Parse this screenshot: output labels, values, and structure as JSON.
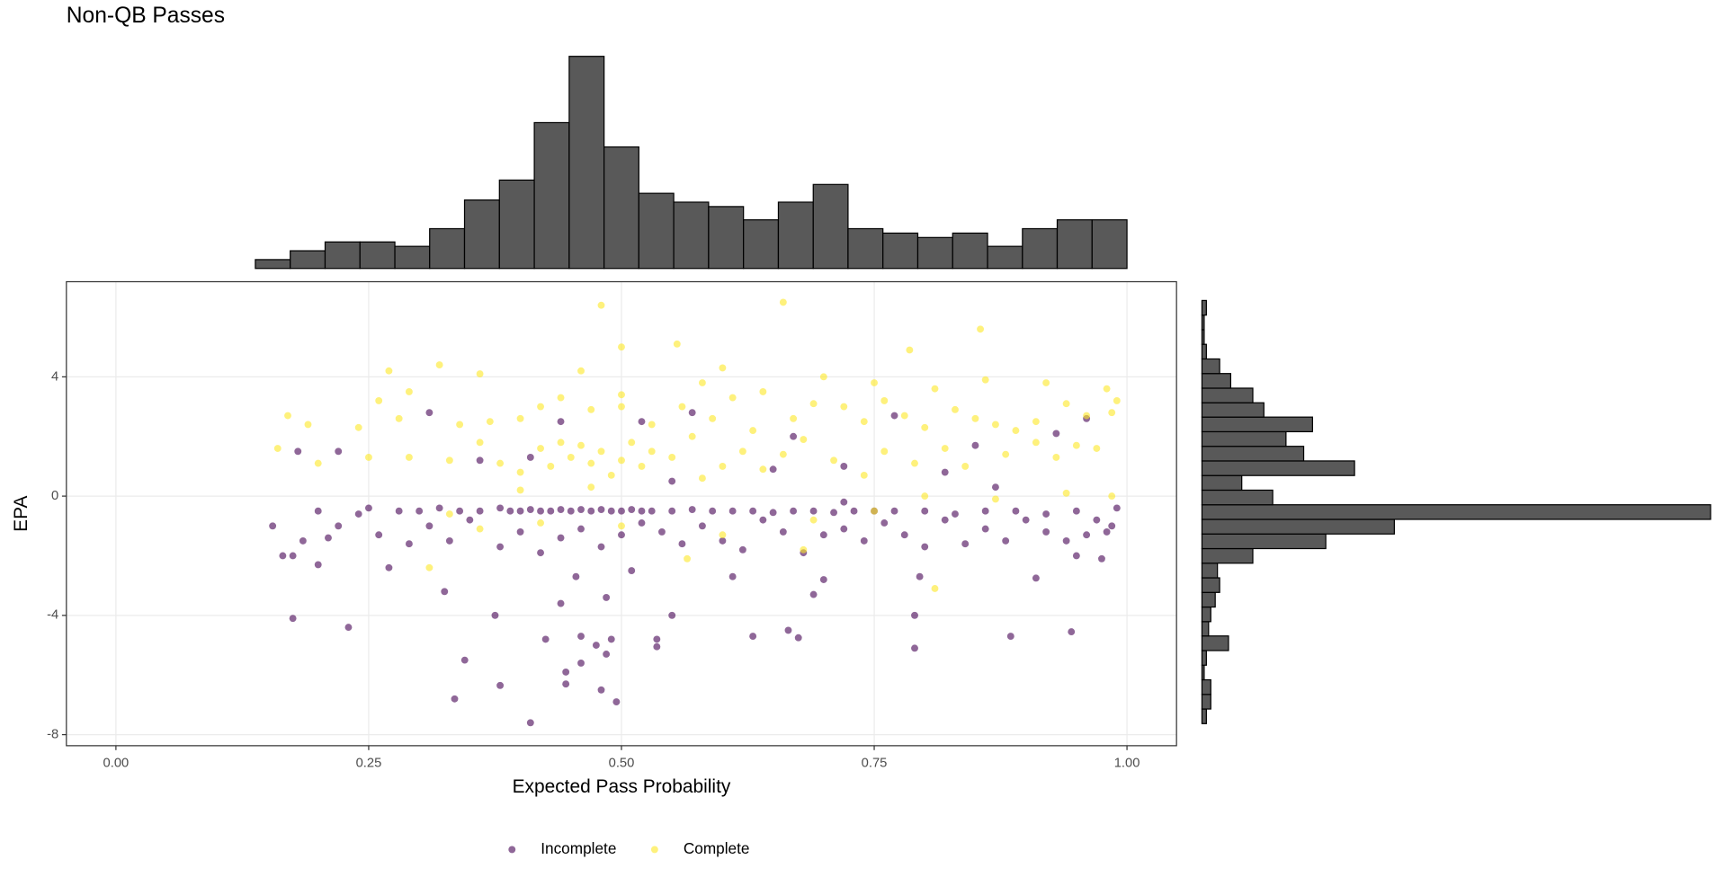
{
  "chart_data": {
    "type": "scatter",
    "title": "Non-QB Passes",
    "xlabel": "Expected Pass Probability",
    "ylabel": "EPA",
    "xlim": [
      -0.049,
      1.049
    ],
    "ylim": [
      -8.37,
      7.19
    ],
    "xticks": [
      {
        "value": 0,
        "label": "0.00"
      },
      {
        "value": 0.25,
        "label": "0.25"
      },
      {
        "value": 0.5,
        "label": "0.50"
      },
      {
        "value": 0.75,
        "label": "0.75"
      },
      {
        "value": 1,
        "label": "1.00"
      }
    ],
    "yticks": [
      -8,
      -4,
      0,
      4
    ],
    "grid": true,
    "alpha": 0.6,
    "legend": "bottom",
    "series": [
      {
        "name": "Incomplete",
        "color": "#440154",
        "x": [
          0.41,
          0.335,
          0.38,
          0.48,
          0.495,
          0.445,
          0.445,
          0.345,
          0.46,
          0.485,
          0.475,
          0.425,
          0.46,
          0.49,
          0.535,
          0.535,
          0.63,
          0.665,
          0.675,
          0.79,
          0.885,
          0.945,
          0.175,
          0.23,
          0.375,
          0.55,
          0.79,
          0.44,
          0.485,
          0.325,
          0.69,
          0.7,
          0.61,
          0.455,
          0.51,
          0.795,
          0.91,
          0.27,
          0.2,
          0.165,
          0.175,
          0.155,
          0.185,
          0.21,
          0.2,
          0.22,
          0.24,
          0.26,
          0.29,
          0.31,
          0.33,
          0.35,
          0.38,
          0.4,
          0.42,
          0.44,
          0.46,
          0.48,
          0.5,
          0.52,
          0.54,
          0.56,
          0.58,
          0.6,
          0.62,
          0.64,
          0.66,
          0.68,
          0.7,
          0.72,
          0.74,
          0.76,
          0.78,
          0.8,
          0.82,
          0.84,
          0.86,
          0.88,
          0.9,
          0.92,
          0.94,
          0.95,
          0.96,
          0.97,
          0.98,
          0.99,
          0.975,
          0.985,
          0.25,
          0.28,
          0.3,
          0.32,
          0.34,
          0.36,
          0.38,
          0.39,
          0.4,
          0.41,
          0.42,
          0.43,
          0.44,
          0.45,
          0.46,
          0.47,
          0.48,
          0.49,
          0.5,
          0.51,
          0.52,
          0.53,
          0.55,
          0.57,
          0.59,
          0.61,
          0.63,
          0.65,
          0.67,
          0.69,
          0.71,
          0.73,
          0.75,
          0.77,
          0.8,
          0.83,
          0.86,
          0.89,
          0.92,
          0.95,
          0.31,
          0.18,
          0.22,
          0.36,
          0.41,
          0.44,
          0.52,
          0.57,
          0.65,
          0.67,
          0.72,
          0.72,
          0.77,
          0.82,
          0.85,
          0.87,
          0.93,
          0.96,
          0.55
        ],
        "values": [
          -7.6,
          -6.8,
          -6.35,
          -6.5,
          -6.9,
          -6.3,
          -5.9,
          -5.5,
          -5.6,
          -5.3,
          -5.0,
          -4.8,
          -4.7,
          -4.8,
          -4.8,
          -5.05,
          -4.7,
          -4.5,
          -4.75,
          -5.1,
          -4.7,
          -4.55,
          -4.1,
          -4.4,
          -4.0,
          -4.0,
          -4.0,
          -3.6,
          -3.4,
          -3.2,
          -3.3,
          -2.8,
          -2.7,
          -2.7,
          -2.5,
          -2.7,
          -2.75,
          -2.4,
          -2.3,
          -2.0,
          -2.0,
          -1.0,
          -1.5,
          -1.4,
          -0.5,
          -1.0,
          -0.6,
          -1.3,
          -1.6,
          -1.0,
          -1.5,
          -0.8,
          -1.7,
          -1.2,
          -1.9,
          -1.4,
          -1.1,
          -1.7,
          -1.3,
          -0.9,
          -1.2,
          -1.6,
          -1.0,
          -1.5,
          -1.8,
          -0.8,
          -1.2,
          -1.9,
          -1.3,
          -1.1,
          -1.5,
          -0.9,
          -1.3,
          -1.7,
          -0.8,
          -1.6,
          -1.1,
          -1.5,
          -0.8,
          -1.2,
          -1.5,
          -2.0,
          -1.3,
          -0.8,
          -1.2,
          -0.4,
          -2.1,
          -1.0,
          -0.4,
          -0.5,
          -0.5,
          -0.4,
          -0.5,
          -0.5,
          -0.4,
          -0.5,
          -0.5,
          -0.45,
          -0.5,
          -0.5,
          -0.45,
          -0.5,
          -0.45,
          -0.5,
          -0.45,
          -0.5,
          -0.5,
          -0.45,
          -0.5,
          -0.5,
          -0.5,
          -0.45,
          -0.5,
          -0.5,
          -0.5,
          -0.55,
          -0.5,
          -0.5,
          -0.55,
          -0.5,
          -0.5,
          -0.5,
          -0.5,
          -0.6,
          -0.5,
          -0.5,
          -0.6,
          -0.5,
          2.8,
          1.5,
          1.5,
          1.2,
          1.3,
          2.5,
          2.5,
          2.8,
          0.9,
          2.0,
          1.0,
          -0.2,
          2.7,
          0.8,
          1.7,
          0.3,
          2.1,
          2.6,
          0.5
        ]
      },
      {
        "name": "Complete",
        "color": "#FDE725",
        "x": [
          0.48,
          0.66,
          0.855,
          0.5,
          0.555,
          0.785,
          0.32,
          0.36,
          0.27,
          0.5,
          0.46,
          0.6,
          0.64,
          0.58,
          0.7,
          0.75,
          0.81,
          0.86,
          0.92,
          0.98,
          0.99,
          0.17,
          0.19,
          0.24,
          0.26,
          0.29,
          0.28,
          0.34,
          0.37,
          0.4,
          0.42,
          0.44,
          0.47,
          0.5,
          0.53,
          0.56,
          0.59,
          0.61,
          0.63,
          0.67,
          0.69,
          0.72,
          0.74,
          0.76,
          0.78,
          0.8,
          0.83,
          0.85,
          0.87,
          0.89,
          0.91,
          0.94,
          0.96,
          0.985,
          0.16,
          0.2,
          0.25,
          0.29,
          0.33,
          0.36,
          0.38,
          0.4,
          0.42,
          0.43,
          0.44,
          0.45,
          0.46,
          0.47,
          0.48,
          0.49,
          0.5,
          0.51,
          0.52,
          0.53,
          0.55,
          0.57,
          0.6,
          0.62,
          0.64,
          0.66,
          0.68,
          0.71,
          0.74,
          0.76,
          0.79,
          0.82,
          0.84,
          0.88,
          0.91,
          0.93,
          0.95,
          0.97,
          0.94,
          0.985,
          0.4,
          0.47,
          0.58,
          0.8,
          0.87,
          0.33,
          0.36,
          0.42,
          0.5,
          0.6,
          0.69,
          0.31,
          0.565,
          0.68,
          0.81,
          0.75
        ],
        "values": [
          6.4,
          6.5,
          5.6,
          5.0,
          5.1,
          4.9,
          4.4,
          4.1,
          4.2,
          3.4,
          4.2,
          4.3,
          3.5,
          3.8,
          4.0,
          3.8,
          3.6,
          3.9,
          3.8,
          3.6,
          3.2,
          2.7,
          2.4,
          2.3,
          3.2,
          3.5,
          2.6,
          2.4,
          2.5,
          2.6,
          3.0,
          3.3,
          2.9,
          3.0,
          2.4,
          3.0,
          2.6,
          3.3,
          2.2,
          2.6,
          3.1,
          3.0,
          2.5,
          3.2,
          2.7,
          2.3,
          2.9,
          2.6,
          2.4,
          2.2,
          2.5,
          3.1,
          2.7,
          2.8,
          1.6,
          1.1,
          1.3,
          1.3,
          1.2,
          1.8,
          1.1,
          0.8,
          1.6,
          1.0,
          1.8,
          1.3,
          1.7,
          1.1,
          1.5,
          0.7,
          1.2,
          1.8,
          1.0,
          1.5,
          1.3,
          2.0,
          1.0,
          1.5,
          0.9,
          1.4,
          1.9,
          1.2,
          0.7,
          1.5,
          1.1,
          1.6,
          1.0,
          1.4,
          1.8,
          1.3,
          1.7,
          1.6,
          0.1,
          0.0,
          0.2,
          0.3,
          0.6,
          0.0,
          -0.1,
          -0.6,
          -1.1,
          -0.9,
          -1.0,
          -1.3,
          -0.8,
          -2.4,
          -2.1,
          -1.8,
          -3.1,
          -0.5
        ]
      }
    ],
    "top_histogram": {
      "color": "#595959",
      "bins": [
        0,
        0.0345,
        0.069,
        0.1034,
        0.1379,
        0.1724,
        0.2069,
        0.2414,
        0.2759,
        0.3103,
        0.3448,
        0.3793,
        0.4138,
        0.4483,
        0.4828,
        0.5172,
        0.5517,
        0.5862,
        0.6207,
        0.6552,
        0.6897,
        0.7241,
        0.7586,
        0.7931,
        0.8276,
        0.8621,
        0.8966,
        0.931,
        0.9655,
        1
      ],
      "counts": [
        0,
        0,
        0,
        0,
        4,
        8,
        12,
        12,
        10,
        18,
        31,
        40,
        66,
        96,
        55,
        34,
        30,
        28,
        22,
        30,
        38,
        18,
        16,
        14,
        16,
        10,
        18,
        22,
        22
      ]
    },
    "right_histogram": {
      "color": "#595959",
      "bins": [
        -7.63,
        -7.14,
        -6.65,
        -6.16,
        -5.67,
        -5.18,
        -4.69,
        -4.21,
        -3.72,
        -3.23,
        -2.74,
        -2.25,
        -1.76,
        -1.27,
        -0.78,
        -0.29,
        0.2,
        0.69,
        1.18,
        1.67,
        2.16,
        2.65,
        3.13,
        3.62,
        4.11,
        4.6,
        5.09,
        5.58,
        6.07,
        6.56
      ],
      "counts": [
        2,
        4,
        4,
        1,
        2,
        12,
        3,
        4,
        6,
        8,
        7,
        23,
        56,
        87,
        230,
        32,
        18,
        69,
        46,
        38,
        50,
        28,
        23,
        13,
        8,
        2,
        1,
        1,
        2
      ]
    }
  }
}
